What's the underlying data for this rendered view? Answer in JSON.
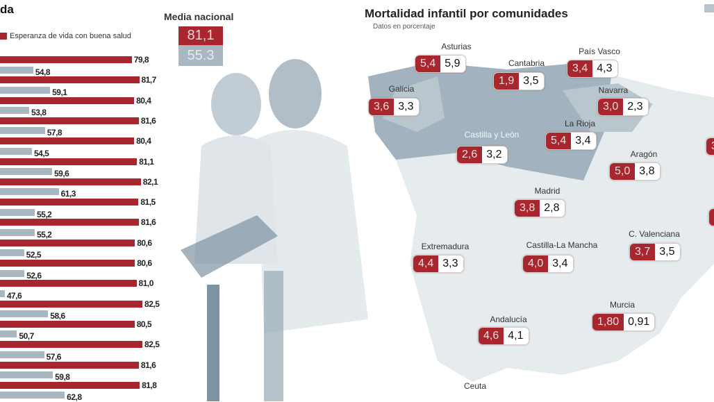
{
  "left_chart": {
    "title_fragment": "da",
    "legend_label": "Esperanza de vida con buena salud",
    "national_avg_title": "Media nacional",
    "national_avg_life": "81,1",
    "national_avg_healthy": "55.3"
  },
  "chart_data": [
    {
      "type": "bar",
      "title": "",
      "series": [
        {
          "name": "Esperanza de vida",
          "values": [
            79.8,
            81.7,
            80.4,
            81.6,
            80.4,
            81.1,
            82.1,
            81.5,
            81.6,
            80.6,
            80.6,
            81.0,
            82.5,
            80.5,
            82.5,
            81.6,
            81.8
          ],
          "labels": [
            "79,8",
            "81,7",
            "80,4",
            "81,6",
            "80,4",
            "81,1",
            "82,1",
            "81,5",
            "81,6",
            "80,6",
            "80,6",
            "81,0",
            "82,5",
            "80,5",
            "82,5",
            "81,6",
            "81,8"
          ],
          "color": "#a8262e"
        },
        {
          "name": "Esperanza de vida con buena salud",
          "values": [
            54.8,
            59.1,
            53.8,
            57.8,
            54.5,
            59.6,
            61.3,
            55.2,
            55.2,
            52.5,
            52.6,
            47.6,
            58.6,
            50.7,
            57.6,
            59.8,
            62.8
          ],
          "labels": [
            "54,8",
            "59,1",
            "53,8",
            "57,8",
            "54,5",
            "59,6",
            "61,3",
            "55,2",
            "55,2",
            "52,5",
            "52,6",
            "47,6",
            "58,6",
            "50,7",
            "57,6",
            "59,8",
            "62,8"
          ],
          "color": "#a9b7c0"
        }
      ]
    },
    {
      "type": "table",
      "title": "Mortalidad infantil por comunidades",
      "subtitle": "Datos en porcentaje",
      "regions": [
        {
          "name": "Asturias",
          "a": "5,4",
          "b": "5,9"
        },
        {
          "name": "Cantabria",
          "a": "1,9",
          "b": "3,5"
        },
        {
          "name": "País Vasco",
          "a": "3,4",
          "b": "4,3"
        },
        {
          "name": "Galicia",
          "a": "3,6",
          "b": "3,3"
        },
        {
          "name": "Navarra",
          "a": "3,0",
          "b": "2,3"
        },
        {
          "name": "Castilla y León",
          "a": "2,6",
          "b": "3,2"
        },
        {
          "name": "La Rioja",
          "a": "5,4",
          "b": "3,4"
        },
        {
          "name": "Aragón",
          "a": "5,0",
          "b": "3,8"
        },
        {
          "name": "Madrid",
          "a": "3,8",
          "b": "2,8"
        },
        {
          "name": "Extremadura",
          "a": "4,4",
          "b": "3,3"
        },
        {
          "name": "Castilla-La Mancha",
          "a": "4,0",
          "b": "3,4"
        },
        {
          "name": "C. Valenciana",
          "a": "3,7",
          "b": "3,5"
        },
        {
          "name": "Murcia",
          "a": "1,80",
          "b": "0,91"
        },
        {
          "name": "Andalucía",
          "a": "4,6",
          "b": "4,1"
        },
        {
          "name": "Ceuta",
          "a": "",
          "b": ""
        }
      ],
      "partial_right_value": "3"
    }
  ]
}
